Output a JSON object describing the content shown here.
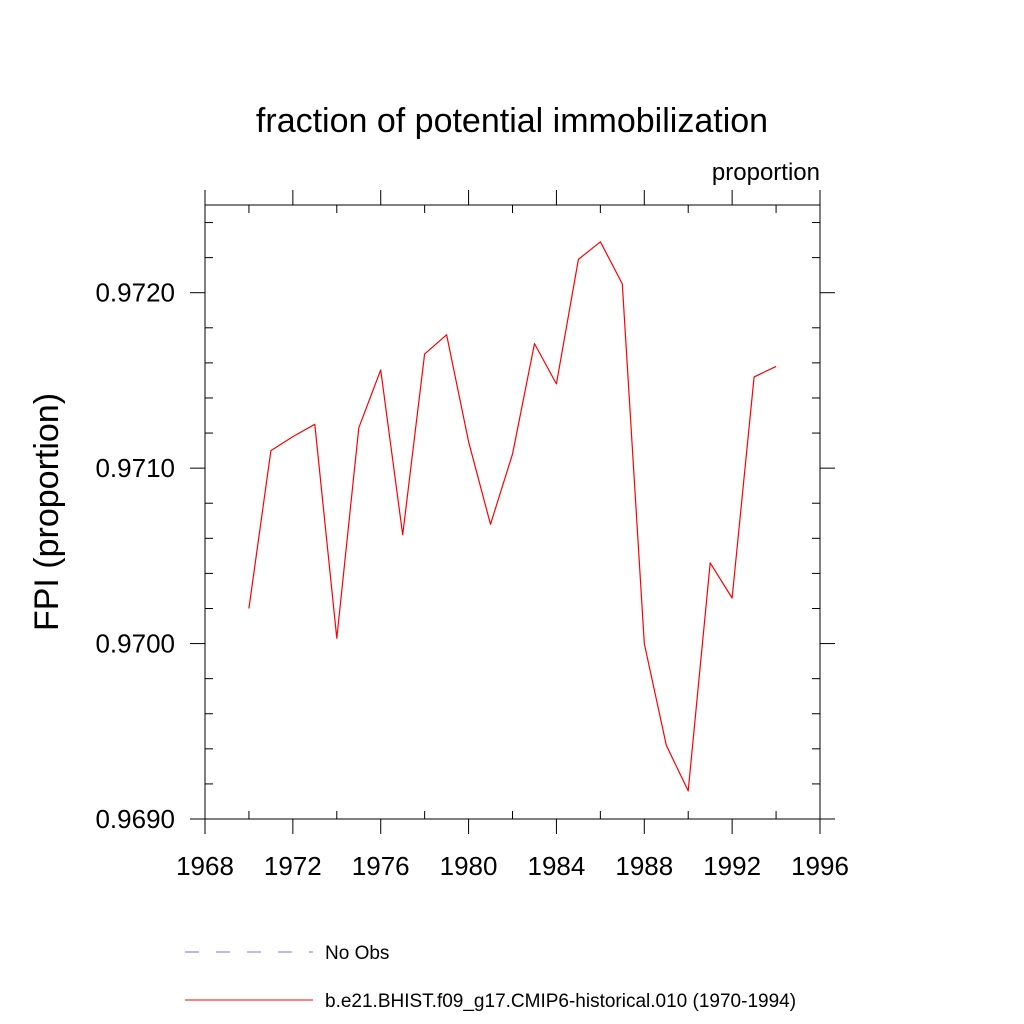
{
  "chart_data": {
    "type": "line",
    "title": "fraction of potential immobilization",
    "subtitle_right": "proportion",
    "ylabel": "FPI  (proportion)",
    "xlabel": "",
    "xlim": [
      1968,
      1996
    ],
    "ylim": [
      0.969,
      0.9725
    ],
    "x_ticks": [
      1968,
      1972,
      1976,
      1980,
      1984,
      1988,
      1992,
      1996
    ],
    "x_tick_labels": [
      "1968",
      "1972",
      "1976",
      "1980",
      "1984",
      "1988",
      "1992",
      "1996"
    ],
    "x_minor_step": 2,
    "y_ticks": [
      0.969,
      0.97,
      0.971,
      0.972
    ],
    "y_tick_labels": [
      "0.9690",
      "0.9700",
      "0.9710",
      "0.9720"
    ],
    "y_minor_step": 0.0002,
    "grid": false,
    "legend_position": "bottom",
    "series": [
      {
        "name": "b.e21.BHIST.f09_g17.CMIP6-historical.010 (1970-1994)",
        "color": "#ff0000",
        "dash": "solid",
        "x": [
          1970,
          1971,
          1972,
          1973,
          1974,
          1975,
          1976,
          1977,
          1978,
          1979,
          1980,
          1981,
          1982,
          1983,
          1984,
          1985,
          1986,
          1987,
          1988,
          1989,
          1990,
          1991,
          1992,
          1993,
          1994
        ],
        "y": [
          0.9702,
          0.9711,
          0.97118,
          0.97125,
          0.97003,
          0.97123,
          0.97156,
          0.97062,
          0.97165,
          0.97176,
          0.97115,
          0.97068,
          0.97108,
          0.97171,
          0.97148,
          0.97219,
          0.97229,
          0.97205,
          0.97,
          0.96942,
          0.96916,
          0.97046,
          0.97026,
          0.97152,
          0.97158
        ]
      }
    ],
    "legend": [
      {
        "label": "No Obs",
        "color": "#7b74c8",
        "dash": "dashed"
      },
      {
        "label": "b.e21.BHIST.f09_g17.CMIP6-historical.010 (1970-1994)",
        "color": "#ff0000",
        "dash": "solid"
      }
    ]
  }
}
